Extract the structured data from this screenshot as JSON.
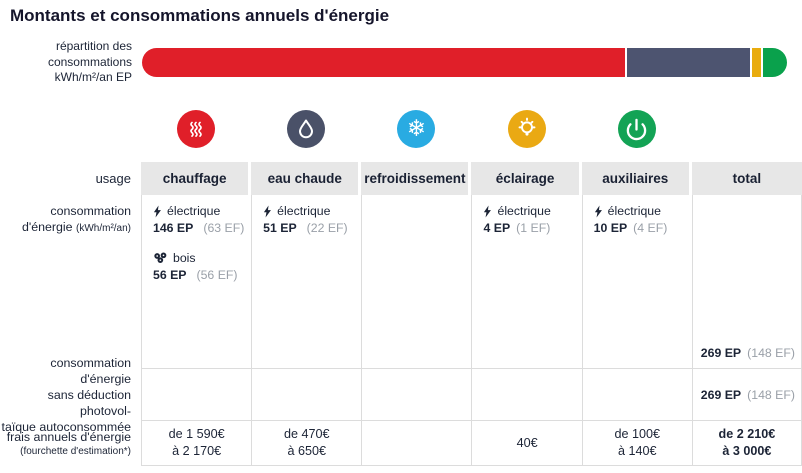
{
  "title": "Montants et consommations annuels d'énergie",
  "bar": {
    "label_lines": [
      "répartition des",
      "consommations",
      "kWh/m²/an EP"
    ]
  },
  "chart_data": {
    "type": "bar",
    "subtype": "horizontal-stacked",
    "title": "Montants et consommations annuels d'énergie",
    "bar_label": "répartition des consommations kWh/m²/an EP",
    "categories": [
      "chauffage",
      "eau chaude",
      "éclairage",
      "auxiliaires"
    ],
    "values": [
      202,
      51,
      4,
      10
    ],
    "colors": [
      "#e01f29",
      "#4d5470",
      "#e9ac0e",
      "#0aa14c"
    ],
    "unit": "kWh/m²/an EP",
    "total_ep": 269,
    "total_ef": 148,
    "legend_position": "none",
    "grid": false
  },
  "icons": [
    {
      "name": "heating-icon",
      "color": "#e01f29"
    },
    {
      "name": "water-drop-icon",
      "color": "#4a5168"
    },
    {
      "name": "snowflake-icon",
      "color": "#29abe2",
      "glyph": "❄"
    },
    {
      "name": "lightbulb-icon",
      "color": "#eaa913"
    },
    {
      "name": "power-icon",
      "color": "#13a355"
    }
  ],
  "table": {
    "usage_label": "usage",
    "columns": [
      "chauffage",
      "eau chaude",
      "refroidissement",
      "éclairage",
      "auxiliaires",
      "total"
    ],
    "energy_row": {
      "label1": "consommation",
      "label2": "d'énergie",
      "unit": "(kWh/m²/an)",
      "entries": {
        "chauffage_electric": {
          "source": "électrique",
          "ep": "146 EP",
          "ef": "(63 EF)"
        },
        "chauffage_bois": {
          "source": "bois",
          "ep": "56 EP",
          "ef": "(56 EF)"
        },
        "eau_chaude": {
          "source": "électrique",
          "ep": "51 EP",
          "ef": "(22 EF)"
        },
        "eclairage": {
          "source": "électrique",
          "ep": "4 EP",
          "ef": "(1 EF)"
        },
        "auxiliaires": {
          "source": "électrique",
          "ep": "10 EP",
          "ef": "(4 EF)"
        },
        "total": {
          "ep": "269 EP",
          "ef": "(148 EF)"
        }
      }
    },
    "pv_row": {
      "label_lines": [
        "consommation d'énergie",
        "sans déduction photovol-",
        "taïque autoconsommée"
      ],
      "total": {
        "ep": "269 EP",
        "ef": "(148 EF)"
      }
    },
    "cost_row": {
      "label": "frais annuels d'énergie",
      "sublabel": "(fourchette d'estimation*)",
      "chauffage": [
        "de 1 590€",
        "à 2 170€"
      ],
      "eau_chaude": [
        "de 470€",
        "à 650€"
      ],
      "eclairage": [
        "40€"
      ],
      "auxiliaires": [
        "de 100€",
        "à 140€"
      ],
      "total": [
        "de 2 210€",
        "à 3 000€"
      ]
    }
  }
}
